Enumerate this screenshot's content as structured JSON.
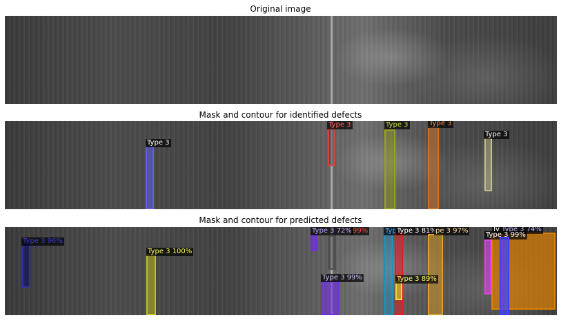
{
  "panels": [
    {
      "title": "Original image"
    },
    {
      "title": "Mask and contour for identified defects"
    },
    {
      "title": "Mask and contour for predicted defects"
    }
  ],
  "identified_labels": [
    "Type 3",
    "Type 3",
    "Type 3",
    "Type 3",
    "Type 3"
  ],
  "identified_colors": [
    "#6060e0",
    "#e04040",
    "#9aa020",
    "#d07020",
    "#c0c090"
  ],
  "predicted_labels": [
    "Type 3 96%",
    "Type 3 100%",
    "Type 3 72%",
    "99%",
    "Type 3 99%",
    "Typ",
    "Type 3 81%",
    "pe 3 97%",
    "Type 3 89%",
    "Iv",
    "Type 3 74%",
    "Type 3 99%"
  ],
  "predicted_colors": [
    "#3030a0",
    "#c0c020",
    "#7030e0",
    "#e04040",
    "#7030e0",
    "#2090c0",
    "#e02020",
    "#e0a020",
    "#e0e040",
    "#e040e0",
    "#4040ff",
    "#e08000"
  ]
}
